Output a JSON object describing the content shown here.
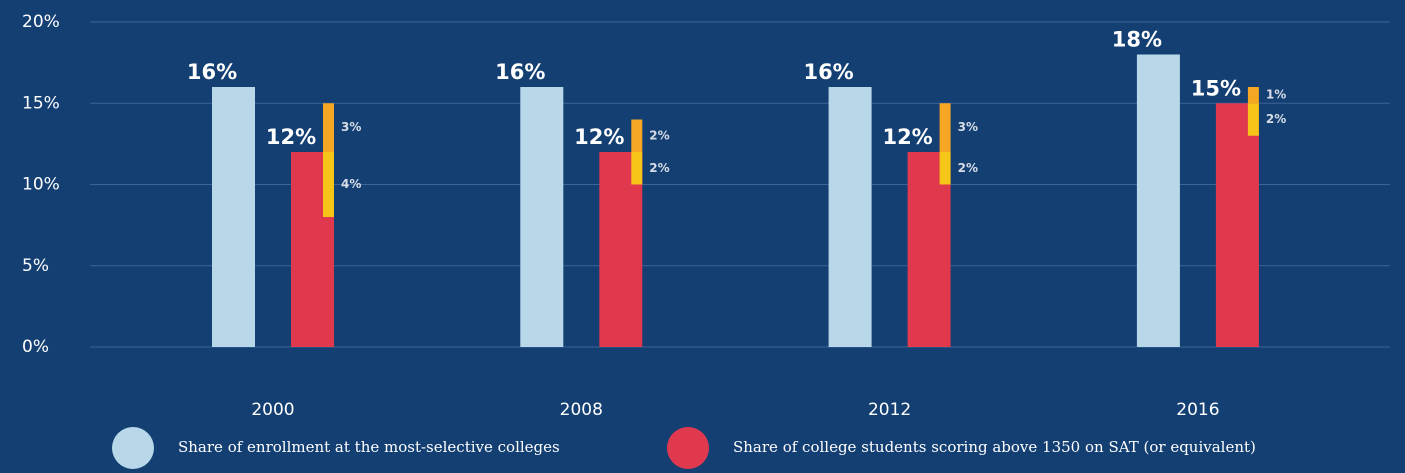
{
  "chart_data": {
    "type": "bar",
    "categories": [
      "2000",
      "2008",
      "2012",
      "2016"
    ],
    "series": [
      {
        "name": "Share of enrollment at the most-selective colleges",
        "color": "#b8d8ea",
        "values": [
          16,
          16,
          16,
          18
        ],
        "value_labels": [
          "16%",
          "16%",
          "16%",
          "18%"
        ]
      },
      {
        "name": "Share of college students scoring above 1350 on SAT (or equivalent)",
        "color": "#e0394e",
        "values": [
          12,
          12,
          12,
          15
        ],
        "value_labels": [
          "12%",
          "12%",
          "12%",
          "15%"
        ]
      },
      {
        "color": "#f5a623",
        "values": [
          3,
          2,
          3,
          1
        ],
        "value_labels": [
          "3%",
          "2%",
          "3%",
          "1%"
        ]
      },
      {
        "color": "#f5c518",
        "values": [
          4,
          2,
          2,
          2
        ],
        "value_labels": [
          "4%",
          "2%",
          "2%",
          "2%"
        ]
      }
    ],
    "ylim": [
      0,
      20
    ],
    "yticks": [
      {
        "value": 0,
        "label": "0%"
      },
      {
        "value": 5,
        "label": "5%"
      },
      {
        "value": 10,
        "label": "10%"
      },
      {
        "value": 15,
        "label": "15%"
      },
      {
        "value": 20,
        "label": "20%"
      }
    ],
    "grid": true,
    "legend": "bottom"
  }
}
